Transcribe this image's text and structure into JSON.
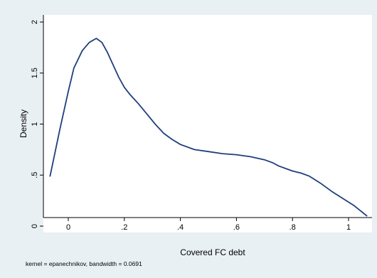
{
  "chart_data": {
    "type": "line",
    "title": "",
    "xlabel": "Covered FC debt",
    "ylabel": "Density",
    "xlim": [
      -0.07,
      1.07
    ],
    "ylim": [
      0,
      2.05
    ],
    "xticks": [
      {
        "value": 0,
        "label": "0"
      },
      {
        "value": 0.2,
        "label": ".2"
      },
      {
        "value": 0.4,
        "label": ".4"
      },
      {
        "value": 0.6,
        "label": ".6"
      },
      {
        "value": 0.8,
        "label": ".8"
      },
      {
        "value": 1,
        "label": "1"
      }
    ],
    "yticks": [
      {
        "value": 0,
        "label": "0"
      },
      {
        "value": 0.5,
        "label": ".5"
      },
      {
        "value": 1,
        "label": "1"
      },
      {
        "value": 1.5,
        "label": "1.5"
      },
      {
        "value": 2,
        "label": "2"
      }
    ],
    "grid": false,
    "note": "kernel = epanechnikov, bandwidth = 0.0691",
    "series": [
      {
        "color": "#1f3f7a",
        "x": [
          -0.065,
          -0.03,
          0.0,
          0.02,
          0.05,
          0.075,
          0.1,
          0.12,
          0.14,
          0.16,
          0.18,
          0.2,
          0.22,
          0.25,
          0.28,
          0.31,
          0.34,
          0.37,
          0.4,
          0.45,
          0.5,
          0.55,
          0.6,
          0.65,
          0.7,
          0.73,
          0.75,
          0.78,
          0.8,
          0.83,
          0.86,
          0.9,
          0.94,
          0.98,
          1.02,
          1.065
        ],
        "y": [
          0.49,
          0.95,
          1.32,
          1.55,
          1.72,
          1.8,
          1.84,
          1.8,
          1.7,
          1.58,
          1.46,
          1.36,
          1.29,
          1.2,
          1.1,
          1.0,
          0.91,
          0.85,
          0.8,
          0.75,
          0.73,
          0.71,
          0.7,
          0.68,
          0.65,
          0.62,
          0.59,
          0.56,
          0.54,
          0.52,
          0.49,
          0.42,
          0.34,
          0.27,
          0.2,
          0.1
        ]
      }
    ]
  }
}
